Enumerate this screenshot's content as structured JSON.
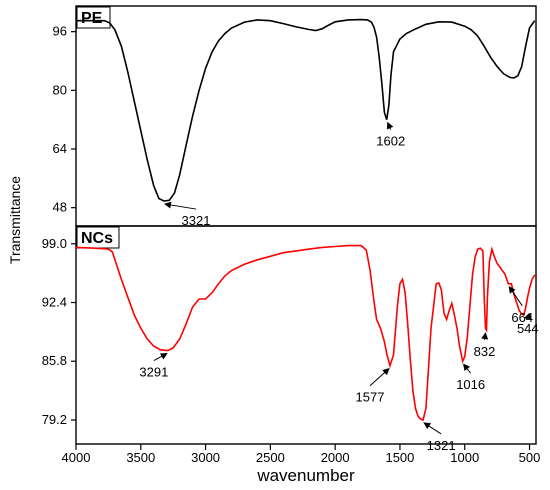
{
  "chart_data": [
    {
      "type": "line",
      "panel_label": "PE",
      "xlabel": "wavenumber",
      "ylabel": "Transmittance",
      "xlim": [
        4000,
        450
      ],
      "ylim": [
        43,
        103
      ],
      "x_reversed": true,
      "yticks": [
        48,
        64,
        80,
        96
      ],
      "color": "#000000",
      "series": [
        {
          "x": [
            4000,
            3850,
            3780,
            3740,
            3700,
            3650,
            3600,
            3550,
            3500,
            3450,
            3400,
            3360,
            3321,
            3280,
            3240,
            3200,
            3150,
            3100,
            3050,
            3000,
            2950,
            2900,
            2850,
            2800,
            2700,
            2600,
            2500,
            2400,
            2300,
            2200,
            2150,
            2100,
            2050,
            2000,
            1900,
            1800,
            1750,
            1720,
            1700,
            1680,
            1660,
            1640,
            1620,
            1602,
            1585,
            1570,
            1550,
            1500,
            1450,
            1400,
            1300,
            1200,
            1100,
            1000,
            950,
            900,
            850,
            800,
            750,
            700,
            650,
            620,
            590,
            560,
            530,
            500,
            460
          ],
          "y": [
            99,
            99,
            99,
            98.4,
            96.5,
            92,
            85,
            77,
            69,
            61,
            54,
            50.5,
            49.8,
            50,
            52,
            57,
            65,
            73,
            80,
            86,
            90.5,
            93.5,
            95.5,
            97,
            98.6,
            99.2,
            99,
            98.2,
            97.3,
            96.6,
            96.3,
            96.8,
            97.8,
            98.7,
            99.2,
            99.3,
            99.2,
            98.6,
            97.2,
            94.5,
            89,
            82,
            74,
            72,
            76,
            84,
            90.5,
            94,
            95.5,
            96.4,
            98,
            98.7,
            98.6,
            97.5,
            96.5,
            94.8,
            92,
            89,
            86.5,
            84.5,
            83.5,
            83.4,
            84,
            86.5,
            92,
            97,
            99
          ]
        }
      ],
      "annotations": [
        {
          "text": "3321",
          "x": 3321,
          "y": 49.8
        },
        {
          "text": "1602",
          "x": 1602,
          "y": 72
        }
      ]
    },
    {
      "type": "line",
      "panel_label": "NCs",
      "xlabel": "wavenumber",
      "ylabel": "Transmittance",
      "xlim": [
        4000,
        450
      ],
      "ylim": [
        76.5,
        101
      ],
      "x_reversed": true,
      "xticks": [
        4000,
        3500,
        3000,
        2500,
        2000,
        1500,
        1000,
        500
      ],
      "yticks": [
        79.2,
        85.8,
        92.4,
        99.0
      ],
      "color": "#ff0000",
      "series": [
        {
          "x": [
            4000,
            3850,
            3750,
            3720,
            3700,
            3650,
            3600,
            3550,
            3500,
            3450,
            3400,
            3350,
            3291,
            3250,
            3200,
            3150,
            3100,
            3050,
            3000,
            2950,
            2900,
            2850,
            2800,
            2700,
            2600,
            2500,
            2400,
            2300,
            2200,
            2100,
            2000,
            1900,
            1800,
            1760,
            1730,
            1700,
            1680,
            1650,
            1620,
            1600,
            1577,
            1550,
            1520,
            1500,
            1480,
            1460,
            1440,
            1420,
            1400,
            1380,
            1360,
            1340,
            1321,
            1300,
            1280,
            1260,
            1240,
            1220,
            1200,
            1180,
            1160,
            1140,
            1120,
            1100,
            1080,
            1060,
            1040,
            1016,
            1000,
            980,
            960,
            940,
            920,
            900,
            880,
            860,
            850,
            840,
            832,
            825,
            810,
            790,
            770,
            750,
            730,
            710,
            690,
            664,
            640,
            620,
            600,
            580,
            560,
            544,
            530,
            515,
            500,
            480,
            460
          ],
          "y": [
            98.6,
            98.5,
            98.4,
            98.1,
            97.2,
            95,
            93,
            91,
            89.5,
            88.3,
            87.5,
            87.1,
            87,
            87.3,
            88.3,
            90,
            91.9,
            92.8,
            92.8,
            93.5,
            94.5,
            95.4,
            96,
            96.7,
            97.2,
            97.6,
            98,
            98.2,
            98.4,
            98.6,
            98.7,
            98.8,
            98.8,
            98.3,
            96,
            92.5,
            90.5,
            89.5,
            88,
            86.5,
            85.3,
            86.5,
            92,
            94.5,
            95,
            93.5,
            90,
            86,
            82.5,
            80.5,
            79.6,
            79.3,
            79.2,
            80.5,
            85,
            89.5,
            92,
            94.5,
            94.6,
            93.8,
            91.2,
            90.5,
            91.5,
            92.3,
            91,
            89.5,
            87.5,
            85.8,
            86.3,
            88.5,
            92,
            95.5,
            97.5,
            98.4,
            98.5,
            98.2,
            93,
            89.5,
            89.3,
            93,
            97,
            98.4,
            97.5,
            96.8,
            96.4,
            96,
            95.6,
            94.5,
            94.5,
            93.3,
            92.4,
            91.5,
            91.1,
            91,
            91.8,
            93,
            94,
            95,
            95.5
          ]
        }
      ],
      "annotations": [
        {
          "text": "3291",
          "x": 3291,
          "y": 87
        },
        {
          "text": "1577",
          "x": 1577,
          "y": 85.3
        },
        {
          "text": "1321",
          "x": 1321,
          "y": 79.2
        },
        {
          "text": "1016",
          "x": 1016,
          "y": 85.8
        },
        {
          "text": "832",
          "x": 832,
          "y": 89.3
        },
        {
          "text": "664",
          "x": 664,
          "y": 94.5
        },
        {
          "text": "544",
          "x": 544,
          "y": 91
        }
      ]
    }
  ]
}
